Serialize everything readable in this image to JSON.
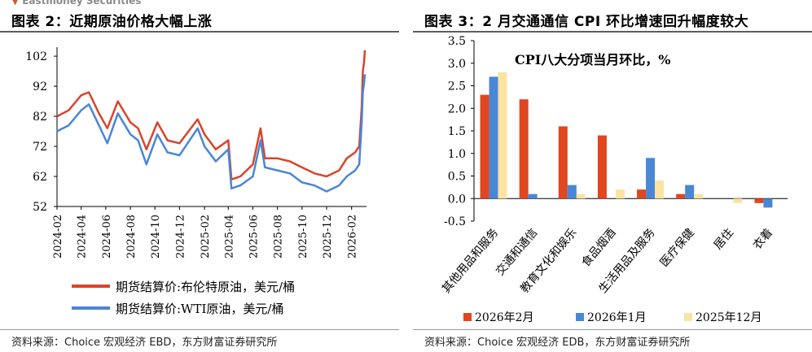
{
  "left": {
    "watermark": "Eastmoney Securities",
    "title": "图表 2：近期原油价格大幅上涨",
    "source": "资料来源：Choice 宏观经济 EBD，东方财富证券研究所",
    "chart_data": {
      "type": "line",
      "y_ticks": [
        "52",
        "62",
        "72",
        "82",
        "92",
        "102"
      ],
      "x_ticks": [
        "2024-02",
        "2024-04",
        "2024-06",
        "2024-08",
        "2024-10",
        "2024-12",
        "2025-02",
        "2025-04",
        "2025-06",
        "2025-08",
        "2025-10",
        "2025-12",
        "2026-02"
      ],
      "ylim": [
        52,
        105
      ],
      "grid": false,
      "legend_position": "bottom",
      "series": [
        {
          "name": "期货结算价:布伦特原油，美元/桶",
          "color": "#d9442b",
          "points": [
            [
              "2024-02-01",
              82
            ],
            [
              "2024-03-01",
              84
            ],
            [
              "2024-04-01",
              89
            ],
            [
              "2024-04-20",
              90
            ],
            [
              "2024-05-15",
              83
            ],
            [
              "2024-06-05",
              78
            ],
            [
              "2024-07-01",
              87
            ],
            [
              "2024-08-01",
              80
            ],
            [
              "2024-08-20",
              78
            ],
            [
              "2024-09-10",
              71
            ],
            [
              "2024-10-07",
              80
            ],
            [
              "2024-11-01",
              74
            ],
            [
              "2024-12-01",
              73
            ],
            [
              "2025-01-15",
              81
            ],
            [
              "2025-02-01",
              76
            ],
            [
              "2025-03-01",
              71
            ],
            [
              "2025-04-01",
              74
            ],
            [
              "2025-04-09",
              61
            ],
            [
              "2025-05-01",
              62
            ],
            [
              "2025-06-01",
              66
            ],
            [
              "2025-06-20",
              78
            ],
            [
              "2025-07-01",
              68
            ],
            [
              "2025-08-01",
              68
            ],
            [
              "2025-09-01",
              67
            ],
            [
              "2025-10-01",
              65
            ],
            [
              "2025-11-01",
              63
            ],
            [
              "2025-12-01",
              62
            ],
            [
              "2026-01-01",
              64
            ],
            [
              "2026-01-20",
              68
            ],
            [
              "2026-02-10",
              70
            ],
            [
              "2026-02-20",
              72
            ],
            [
              "2026-02-26",
              85
            ],
            [
              "2026-03-01",
              97
            ],
            [
              "2026-03-04",
              100
            ],
            [
              "2026-03-06",
              104
            ]
          ]
        },
        {
          "name": "期货结算价:WTI原油，美元/桶",
          "color": "#4a86d6",
          "points": [
            [
              "2024-02-01",
              77
            ],
            [
              "2024-03-01",
              79
            ],
            [
              "2024-04-01",
              84
            ],
            [
              "2024-04-20",
              86
            ],
            [
              "2024-05-15",
              79
            ],
            [
              "2024-06-05",
              73
            ],
            [
              "2024-07-01",
              83
            ],
            [
              "2024-08-01",
              76
            ],
            [
              "2024-08-20",
              74
            ],
            [
              "2024-09-10",
              66
            ],
            [
              "2024-10-07",
              76
            ],
            [
              "2024-11-01",
              70
            ],
            [
              "2024-12-01",
              69
            ],
            [
              "2025-01-15",
              78
            ],
            [
              "2025-02-01",
              72
            ],
            [
              "2025-03-01",
              67
            ],
            [
              "2025-04-01",
              71
            ],
            [
              "2025-04-09",
              58
            ],
            [
              "2025-05-01",
              59
            ],
            [
              "2025-06-01",
              62
            ],
            [
              "2025-06-20",
              74
            ],
            [
              "2025-07-01",
              65
            ],
            [
              "2025-08-01",
              64
            ],
            [
              "2025-09-01",
              63
            ],
            [
              "2025-10-01",
              60
            ],
            [
              "2025-11-01",
              59
            ],
            [
              "2025-12-01",
              57
            ],
            [
              "2026-01-01",
              59
            ],
            [
              "2026-01-20",
              62
            ],
            [
              "2026-02-10",
              64
            ],
            [
              "2026-02-20",
              66
            ],
            [
              "2026-02-26",
              80
            ],
            [
              "2026-03-01",
              90
            ],
            [
              "2026-03-04",
              93
            ],
            [
              "2026-03-06",
              96
            ]
          ]
        }
      ]
    }
  },
  "right": {
    "title": "图表 3：2 月交通通信 CPI 环比增速回升幅度较大",
    "source": "资料来源：Choice 宏观经济 EDB，东方财富证券研究所",
    "chart_data": {
      "type": "bar",
      "title": "CPI八大分项当月环比，%",
      "categories": [
        "其他用品和服务",
        "交通和通信",
        "教育文化和娱乐",
        "食品烟酒",
        "生活用品及服务",
        "医疗保健",
        "居住",
        "衣着"
      ],
      "ylim": [
        -0.5,
        3.5
      ],
      "y_ticks": [
        "-0.5",
        "0.0",
        "0.5",
        "1.0",
        "1.5",
        "2.0",
        "2.5",
        "3.0",
        "3.5"
      ],
      "grid": false,
      "legend_position": "bottom",
      "series": [
        {
          "name": "2026年2月",
          "color": "#e0461f",
          "values": [
            2.3,
            2.2,
            1.6,
            1.4,
            0.2,
            0.1,
            0.0,
            -0.1
          ]
        },
        {
          "name": "2026年1月",
          "color": "#4a86d6",
          "values": [
            2.7,
            0.1,
            0.3,
            0.0,
            0.9,
            0.3,
            0.0,
            -0.2
          ]
        },
        {
          "name": "2025年12月",
          "color": "#fbe3a2",
          "values": [
            2.8,
            0.0,
            0.1,
            0.2,
            0.4,
            0.1,
            -0.1,
            0.0
          ]
        }
      ]
    }
  }
}
